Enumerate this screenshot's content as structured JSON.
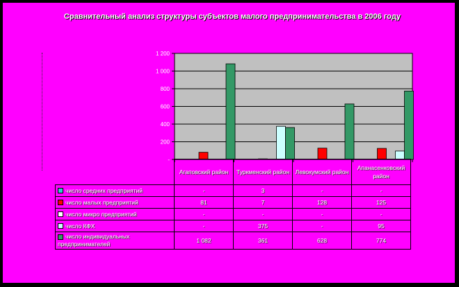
{
  "chart_data": {
    "type": "bar",
    "title": "Сравнительный анализ структуры субъектов малого предпринимательства в 2006 году",
    "categories": [
      "Агаповский район",
      "Туркменский район",
      "Левокумский район",
      "Апанасенковский район"
    ],
    "ylim": [
      0,
      1200
    ],
    "yticks": [
      "-",
      "200",
      "400",
      "600",
      "800",
      "1 000",
      "1 200"
    ],
    "series": [
      {
        "name": "число средних предприятий",
        "color": "#33cccc",
        "values": [
          0,
          3,
          0,
          0
        ],
        "labels": [
          "-",
          "3",
          "-",
          "-"
        ]
      },
      {
        "name": "число малых предприятий",
        "color": "#ff0000",
        "values": [
          81,
          7,
          128,
          125
        ],
        "labels": [
          "81",
          "7",
          "128",
          "125"
        ]
      },
      {
        "name": "число микро предприятий",
        "color": "#ffffff",
        "values": [
          0,
          0,
          0,
          0
        ],
        "labels": [
          "-",
          "-",
          "-",
          "-"
        ]
      },
      {
        "name": "число КФХ",
        "color": "#ccffff",
        "values": [
          0,
          375,
          0,
          95
        ],
        "labels": [
          "-",
          "375",
          "-",
          "95"
        ]
      },
      {
        "name": "число индивидуальных предпринимателей",
        "color": "#339966",
        "values": [
          1082,
          361,
          628,
          774
        ],
        "labels": [
          "1 082",
          "361",
          "628",
          "774"
        ]
      }
    ],
    "grid": true,
    "plot_bg": "#c0c0c0",
    "frame_bg": "#ff00ff"
  }
}
